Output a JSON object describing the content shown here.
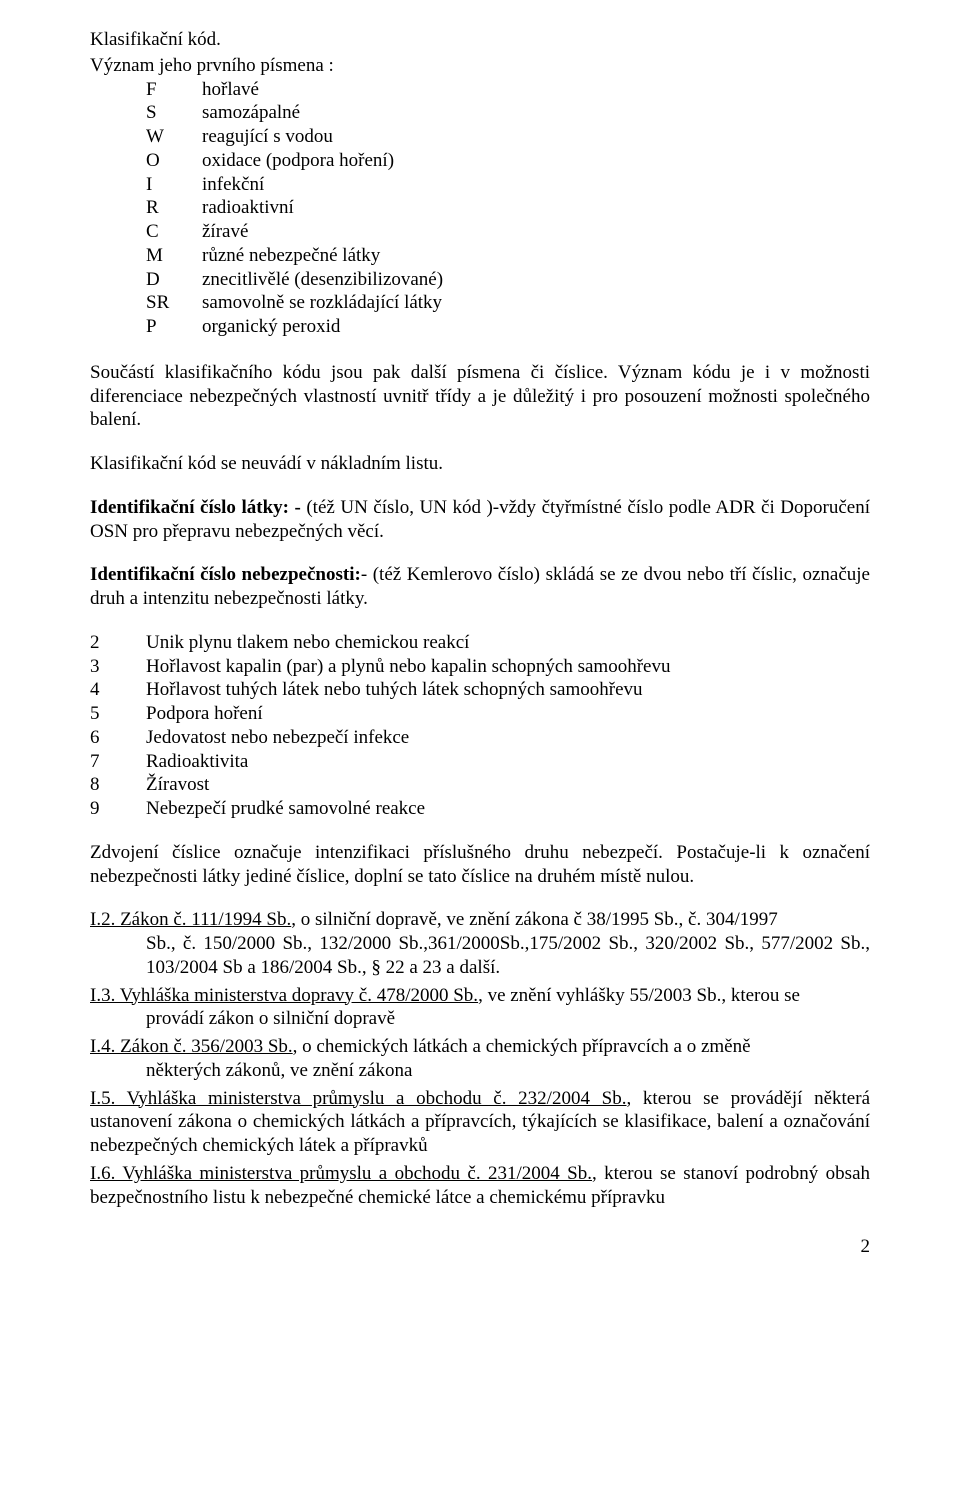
{
  "title_line": "Klasifikační kód.",
  "intro_line": "Význam jeho prvního písmena :",
  "codes": [
    {
      "k": "F",
      "v": "hořlavé"
    },
    {
      "k": "S",
      "v": "samozápalné"
    },
    {
      "k": "W",
      "v": "reagující s vodou"
    },
    {
      "k": "O",
      "v": "oxidace (podpora hoření)"
    },
    {
      "k": "I",
      "v": "infekční"
    },
    {
      "k": "R",
      "v": "radioaktivní"
    },
    {
      "k": "C",
      "v": "žíravé"
    },
    {
      "k": "M",
      "v": "různé nebezpečné látky"
    },
    {
      "k": "D",
      "v": "znecitlivělé (desenzibilizované)"
    },
    {
      "k": "SR",
      "v": "samovolně se rozkládající látky"
    },
    {
      "k": "P",
      "v": "organický peroxid"
    }
  ],
  "para1": "Součástí klasifikačního kódu jsou pak další písmena či číslice. Význam kódu je i v možnosti diferenciace nebezpečných vlastností uvnitř třídy a je důležitý i pro posouzení možnosti společného balení.",
  "para2": "Klasifikační kód se neuvádí  v nákladním listu.",
  "para3_bold": "Identifikační číslo látky: - ",
  "para3_rest": "(též UN číslo, UN kód )-vždy  čtyřmístné číslo podle ADR či Doporučení OSN pro přepravu nebezpečných věcí.",
  "para4_bold": "Identifikační číslo nebezpečnosti:",
  "para4_rest": "- (též  Kemlerovo  číslo) skládá se ze  dvou  nebo  tří  číslic,  označuje druh a  intenzitu nebezpečnosti látky.",
  "digits": [
    {
      "n": "2",
      "d": "Unik plynu tlakem nebo chemickou reakcí"
    },
    {
      "n": "3",
      "d": "Hořlavost kapalin (par) a plynů nebo kapalin schopných samoohřevu"
    },
    {
      "n": "4",
      "d": "Hořlavost tuhých látek nebo tuhých látek schopných samoohřevu"
    },
    {
      "n": "5",
      "d": "Podpora hoření"
    },
    {
      "n": "6",
      "d": "Jedovatost nebo nebezpečí infekce"
    },
    {
      "n": "7",
      "d": "Radioaktivita"
    },
    {
      "n": "8",
      "d": "Žíravost"
    },
    {
      "n": "9",
      "d": "Nebezpečí prudké samovolné reakce"
    }
  ],
  "para5": "Zdvojení číslice označuje intenzifikaci příslušného druhu nebezpečí. Postačuje-li k označení nebezpečnosti látky jediné číslice, doplní se tato číslice na druhém místě nulou.",
  "refs": {
    "i2": {
      "head": "I.2. Zákon č. 111/1994 Sb.",
      "tail1": ", o silniční dopravě, ve znění zákona č 38/1995 Sb., č. 304/1997",
      "cont": "Sb., č. 150/2000 Sb., 132/2000 Sb.,361/2000Sb.,175/2002 Sb., 320/2002 Sb., 577/2002 Sb., 103/2004 Sb a 186/2004 Sb., § 22 a 23 a další."
    },
    "i3": {
      "head": "I.3. Vyhláška ministerstva dopravy č. 478/2000 Sb.",
      "tail1": ", ve znění vyhlášky 55/2003 Sb., kterou se",
      "cont": "provádí zákon o silniční  dopravě"
    },
    "i4": {
      "head": "I.4. Zákon č. 356/2003 Sb.",
      "tail1": ", o chemických látkách a chemických přípravcích a o změně",
      "cont": "některých  zákonů, ve znění zákona"
    },
    "i5": {
      "head": "I.5. Vyhláška ministerstva průmyslu a obchodu č. 232/2004 Sb.",
      "tail1": ", kterou se provádějí některá ustanovení zákona o chemických látkách a přípravcích, týkajících se klasifikace, balení a označování nebezpečných chemických látek a přípravků"
    },
    "i6": {
      "head": "I.6. Vyhláška ministerstva průmyslu a obchodu č. 231/2004 Sb.",
      "tail1": ", kterou se stanoví podrobný obsah bezpečnostního listu k nebezpečné chemické látce a chemickému přípravku"
    }
  },
  "page_number": "2"
}
